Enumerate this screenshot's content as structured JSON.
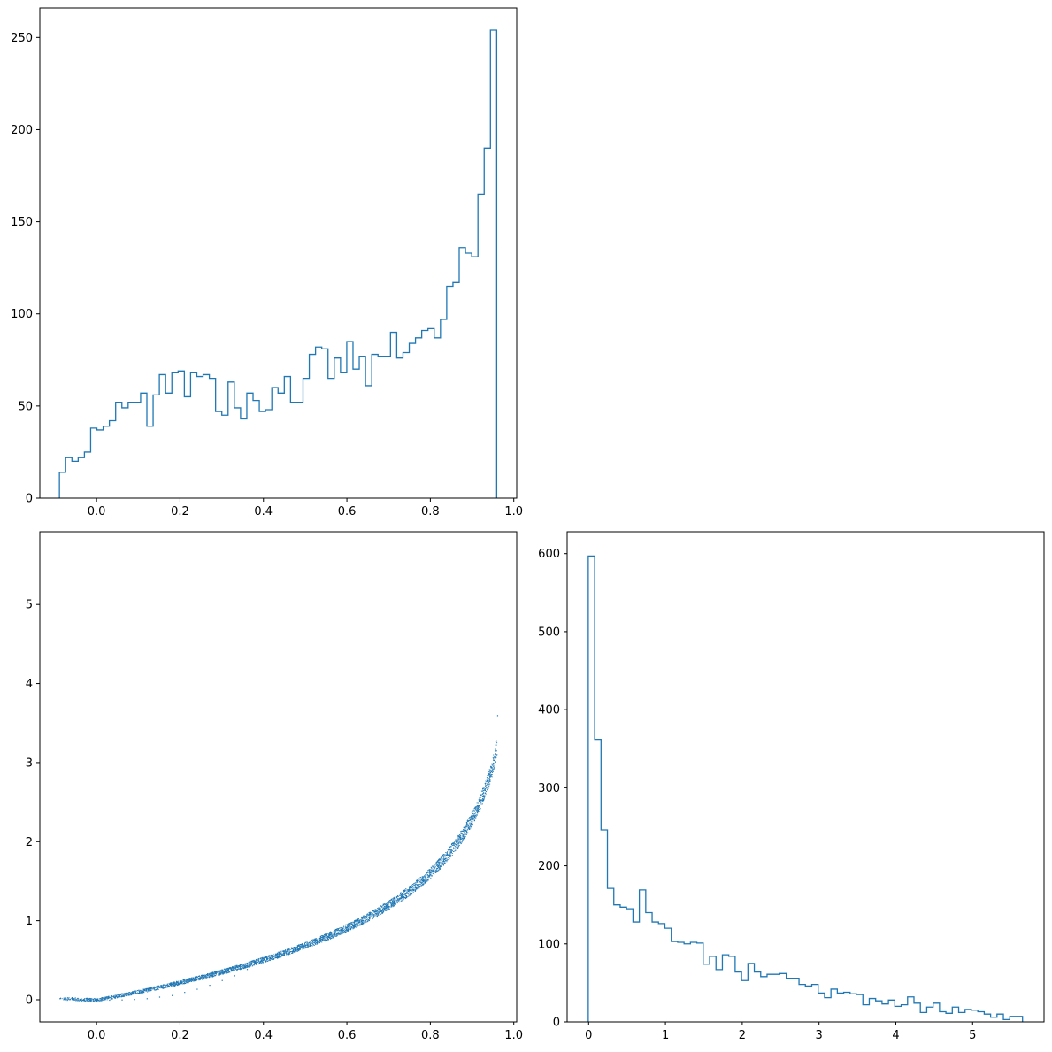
{
  "colors": {
    "series": "#1f77b4",
    "axes": "#000000",
    "background": "#ffffff"
  },
  "chart_data": [
    {
      "type": "histogram",
      "position": "top-left",
      "title": "",
      "xlabel": "",
      "ylabel": "",
      "xlim": [
        -0.136,
        1.007
      ],
      "ylim": [
        0,
        266
      ],
      "x_ticks": [
        "0.0",
        "0.2",
        "0.4",
        "0.6",
        "0.8",
        "1.0"
      ],
      "x_tick_values": [
        0.0,
        0.2,
        0.4,
        0.6,
        0.8,
        1.0
      ],
      "y_ticks": [
        "0",
        "50",
        "100",
        "150",
        "200",
        "250"
      ],
      "y_tick_values": [
        0,
        50,
        100,
        150,
        200,
        250
      ],
      "bin_range": [
        -0.089,
        0.959
      ],
      "counts": [
        14,
        22,
        20,
        22,
        25,
        38,
        37,
        39,
        42,
        52,
        49,
        52,
        52,
        57,
        39,
        56,
        67,
        57,
        68,
        69,
        55,
        68,
        66,
        67,
        65,
        47,
        45,
        63,
        49,
        43,
        57,
        53,
        47,
        48,
        60,
        57,
        66,
        52,
        52,
        65,
        78,
        82,
        81,
        65,
        76,
        68,
        85,
        70,
        77,
        61,
        78,
        77,
        77,
        90,
        76,
        79,
        84,
        87,
        91,
        92,
        87,
        97,
        115,
        117,
        136,
        133,
        131,
        165,
        190,
        254
      ]
    },
    {
      "type": "scatter",
      "position": "bottom-left",
      "title": "",
      "xlabel": "",
      "ylabel": "",
      "xlim": [
        -0.136,
        1.007
      ],
      "ylim": [
        -0.28,
        5.92
      ],
      "x_ticks": [
        "0.0",
        "0.2",
        "0.4",
        "0.6",
        "0.8",
        "1.0"
      ],
      "x_tick_values": [
        0.0,
        0.2,
        0.4,
        0.6,
        0.8,
        1.0
      ],
      "y_ticks": [
        "0",
        "1",
        "2",
        "3",
        "4",
        "5"
      ],
      "y_tick_values": [
        0,
        1,
        2,
        3,
        4,
        5
      ],
      "relationship": "y = -ln(1 - x), tight band",
      "points": [
        [
          -0.089,
          0.02
        ],
        [
          -0.06,
          0.01
        ],
        [
          -0.03,
          0.005
        ],
        [
          0.0,
          0.0
        ],
        [
          0.03,
          0.001
        ],
        [
          0.06,
          0.004
        ],
        [
          0.09,
          0.01
        ],
        [
          0.12,
          0.02
        ],
        [
          0.15,
          0.04
        ],
        [
          0.18,
          0.06
        ],
        [
          0.21,
          0.1
        ],
        [
          0.24,
          0.14
        ],
        [
          0.27,
          0.19
        ],
        [
          0.3,
          0.25
        ],
        [
          0.33,
          0.31
        ],
        [
          0.36,
          0.39
        ],
        [
          0.39,
          0.47
        ],
        [
          0.42,
          0.54
        ],
        [
          0.45,
          0.6
        ],
        [
          0.48,
          0.65
        ],
        [
          0.51,
          0.71
        ],
        [
          0.54,
          0.78
        ],
        [
          0.57,
          0.84
        ],
        [
          0.6,
          0.92
        ],
        [
          0.63,
          0.99
        ],
        [
          0.66,
          1.08
        ],
        [
          0.69,
          1.17
        ],
        [
          0.72,
          1.27
        ],
        [
          0.75,
          1.39
        ],
        [
          0.78,
          1.51
        ],
        [
          0.8,
          1.61
        ],
        [
          0.82,
          1.71
        ],
        [
          0.84,
          1.83
        ],
        [
          0.86,
          1.97
        ],
        [
          0.88,
          2.12
        ],
        [
          0.9,
          2.3
        ],
        [
          0.91,
          2.41
        ],
        [
          0.92,
          2.53
        ],
        [
          0.93,
          2.66
        ],
        [
          0.94,
          2.81
        ],
        [
          0.945,
          2.9
        ],
        [
          0.95,
          3.0
        ],
        [
          0.955,
          3.12
        ],
        [
          0.96,
          3.6
        ]
      ]
    },
    {
      "type": "histogram",
      "position": "bottom-right",
      "title": "",
      "xlabel": "",
      "ylabel": "",
      "xlim": [
        -0.28,
        5.93
      ],
      "ylim": [
        0,
        628
      ],
      "x_ticks": [
        "0",
        "1",
        "2",
        "3",
        "4",
        "5"
      ],
      "x_tick_values": [
        0,
        1,
        2,
        3,
        4,
        5
      ],
      "y_ticks": [
        "0",
        "100",
        "200",
        "300",
        "400",
        "500",
        "600"
      ],
      "y_tick_values": [
        0,
        100,
        200,
        300,
        400,
        500,
        600
      ],
      "bin_range": [
        -0.005,
        5.65
      ],
      "counts": [
        597,
        362,
        246,
        171,
        150,
        147,
        145,
        128,
        169,
        140,
        128,
        126,
        120,
        103,
        102,
        100,
        102,
        101,
        74,
        84,
        67,
        86,
        84,
        64,
        53,
        75,
        64,
        58,
        61,
        61,
        62,
        56,
        56,
        48,
        46,
        48,
        37,
        31,
        42,
        37,
        38,
        36,
        35,
        22,
        30,
        27,
        23,
        28,
        20,
        22,
        32,
        24,
        12,
        19,
        24,
        13,
        11,
        19,
        12,
        16,
        15,
        13,
        10,
        6,
        10,
        3,
        7,
        7
      ]
    }
  ]
}
